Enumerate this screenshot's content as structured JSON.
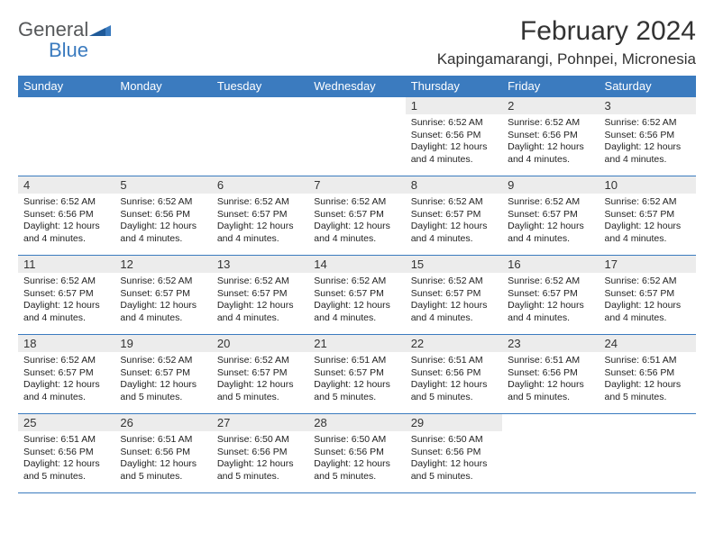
{
  "logo": {
    "text1": "General",
    "text2": "Blue"
  },
  "title": "February 2024",
  "location": "Kapingamarangi, Pohnpei, Micronesia",
  "colors": {
    "header_bg": "#3b7bbf",
    "header_text": "#ffffff",
    "daynum_bg": "#ececec",
    "border": "#3b7bbf",
    "logo_gray": "#56585a",
    "logo_blue": "#3b7bbf",
    "body_text": "#222222",
    "page_bg": "#ffffff"
  },
  "weekdays": [
    "Sunday",
    "Monday",
    "Tuesday",
    "Wednesday",
    "Thursday",
    "Friday",
    "Saturday"
  ],
  "weeks": [
    [
      null,
      null,
      null,
      null,
      {
        "n": "1",
        "sunrise": "6:52 AM",
        "sunset": "6:56 PM",
        "daylight": "12 hours and 4 minutes."
      },
      {
        "n": "2",
        "sunrise": "6:52 AM",
        "sunset": "6:56 PM",
        "daylight": "12 hours and 4 minutes."
      },
      {
        "n": "3",
        "sunrise": "6:52 AM",
        "sunset": "6:56 PM",
        "daylight": "12 hours and 4 minutes."
      }
    ],
    [
      {
        "n": "4",
        "sunrise": "6:52 AM",
        "sunset": "6:56 PM",
        "daylight": "12 hours and 4 minutes."
      },
      {
        "n": "5",
        "sunrise": "6:52 AM",
        "sunset": "6:56 PM",
        "daylight": "12 hours and 4 minutes."
      },
      {
        "n": "6",
        "sunrise": "6:52 AM",
        "sunset": "6:57 PM",
        "daylight": "12 hours and 4 minutes."
      },
      {
        "n": "7",
        "sunrise": "6:52 AM",
        "sunset": "6:57 PM",
        "daylight": "12 hours and 4 minutes."
      },
      {
        "n": "8",
        "sunrise": "6:52 AM",
        "sunset": "6:57 PM",
        "daylight": "12 hours and 4 minutes."
      },
      {
        "n": "9",
        "sunrise": "6:52 AM",
        "sunset": "6:57 PM",
        "daylight": "12 hours and 4 minutes."
      },
      {
        "n": "10",
        "sunrise": "6:52 AM",
        "sunset": "6:57 PM",
        "daylight": "12 hours and 4 minutes."
      }
    ],
    [
      {
        "n": "11",
        "sunrise": "6:52 AM",
        "sunset": "6:57 PM",
        "daylight": "12 hours and 4 minutes."
      },
      {
        "n": "12",
        "sunrise": "6:52 AM",
        "sunset": "6:57 PM",
        "daylight": "12 hours and 4 minutes."
      },
      {
        "n": "13",
        "sunrise": "6:52 AM",
        "sunset": "6:57 PM",
        "daylight": "12 hours and 4 minutes."
      },
      {
        "n": "14",
        "sunrise": "6:52 AM",
        "sunset": "6:57 PM",
        "daylight": "12 hours and 4 minutes."
      },
      {
        "n": "15",
        "sunrise": "6:52 AM",
        "sunset": "6:57 PM",
        "daylight": "12 hours and 4 minutes."
      },
      {
        "n": "16",
        "sunrise": "6:52 AM",
        "sunset": "6:57 PM",
        "daylight": "12 hours and 4 minutes."
      },
      {
        "n": "17",
        "sunrise": "6:52 AM",
        "sunset": "6:57 PM",
        "daylight": "12 hours and 4 minutes."
      }
    ],
    [
      {
        "n": "18",
        "sunrise": "6:52 AM",
        "sunset": "6:57 PM",
        "daylight": "12 hours and 4 minutes."
      },
      {
        "n": "19",
        "sunrise": "6:52 AM",
        "sunset": "6:57 PM",
        "daylight": "12 hours and 5 minutes."
      },
      {
        "n": "20",
        "sunrise": "6:52 AM",
        "sunset": "6:57 PM",
        "daylight": "12 hours and 5 minutes."
      },
      {
        "n": "21",
        "sunrise": "6:51 AM",
        "sunset": "6:57 PM",
        "daylight": "12 hours and 5 minutes."
      },
      {
        "n": "22",
        "sunrise": "6:51 AM",
        "sunset": "6:56 PM",
        "daylight": "12 hours and 5 minutes."
      },
      {
        "n": "23",
        "sunrise": "6:51 AM",
        "sunset": "6:56 PM",
        "daylight": "12 hours and 5 minutes."
      },
      {
        "n": "24",
        "sunrise": "6:51 AM",
        "sunset": "6:56 PM",
        "daylight": "12 hours and 5 minutes."
      }
    ],
    [
      {
        "n": "25",
        "sunrise": "6:51 AM",
        "sunset": "6:56 PM",
        "daylight": "12 hours and 5 minutes."
      },
      {
        "n": "26",
        "sunrise": "6:51 AM",
        "sunset": "6:56 PM",
        "daylight": "12 hours and 5 minutes."
      },
      {
        "n": "27",
        "sunrise": "6:50 AM",
        "sunset": "6:56 PM",
        "daylight": "12 hours and 5 minutes."
      },
      {
        "n": "28",
        "sunrise": "6:50 AM",
        "sunset": "6:56 PM",
        "daylight": "12 hours and 5 minutes."
      },
      {
        "n": "29",
        "sunrise": "6:50 AM",
        "sunset": "6:56 PM",
        "daylight": "12 hours and 5 minutes."
      },
      null,
      null
    ]
  ],
  "labels": {
    "sunrise": "Sunrise:",
    "sunset": "Sunset:",
    "daylight": "Daylight:"
  }
}
